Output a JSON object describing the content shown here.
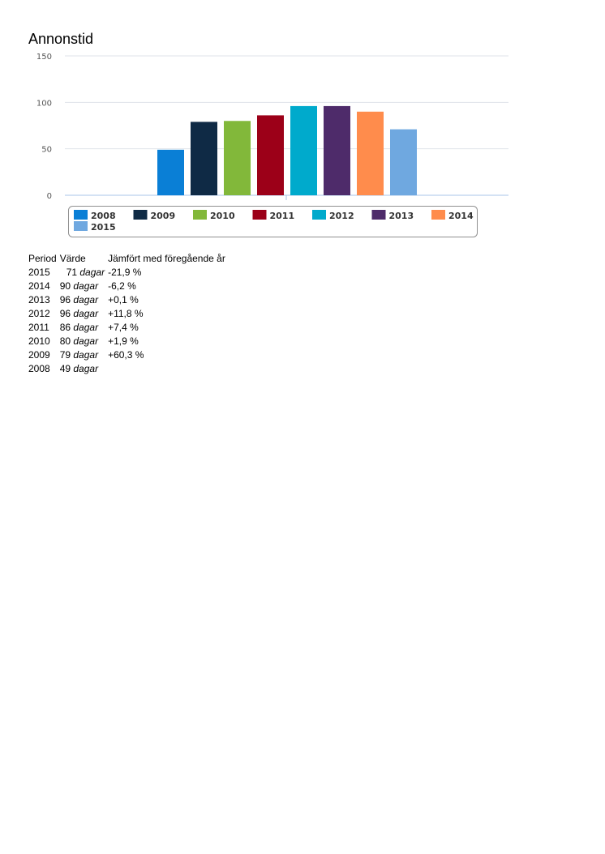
{
  "page": {
    "title": "Annonstid"
  },
  "chart_data": {
    "type": "bar",
    "title": "",
    "xlabel": "",
    "ylabel": "",
    "ylim": [
      0,
      150
    ],
    "yticks": [
      0,
      50,
      100,
      150
    ],
    "grid": true,
    "legend_position": "bottom",
    "categories": [
      "2008",
      "2009",
      "2010",
      "2011",
      "2012",
      "2013",
      "2014",
      "2015"
    ],
    "values": [
      49,
      79,
      80,
      86,
      96,
      96,
      90,
      71
    ],
    "colors": [
      "#0a7fd6",
      "#0f2a45",
      "#82b83a",
      "#9c0018",
      "#00aacc",
      "#4e2b6a",
      "#ff8c4c",
      "#6fa8e0"
    ]
  },
  "table": {
    "headers": [
      "Period",
      "Värde",
      "Jämfört med föregående år"
    ],
    "unit": "dagar",
    "rows": [
      {
        "period": "2015",
        "value": "71",
        "change": "-21,9 %"
      },
      {
        "period": "2014",
        "value": "90",
        "change": "-6,2 %"
      },
      {
        "period": "2013",
        "value": "96",
        "change": "+0,1 %"
      },
      {
        "period": "2012",
        "value": "96",
        "change": "+11,8 %"
      },
      {
        "period": "2011",
        "value": "86",
        "change": "+7,4 %"
      },
      {
        "period": "2010",
        "value": "80",
        "change": "+1,9 %"
      },
      {
        "period": "2009",
        "value": "79",
        "change": "+60,3 %"
      },
      {
        "period": "2008",
        "value": "49",
        "change": ""
      }
    ]
  }
}
